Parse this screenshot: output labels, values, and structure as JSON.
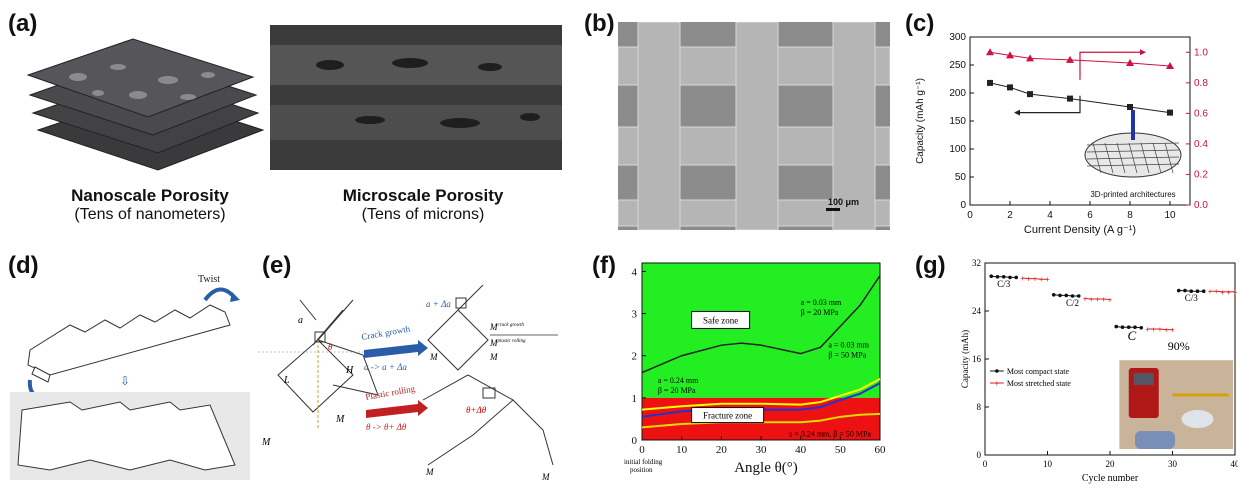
{
  "labels": {
    "a": "(a)",
    "b": "(b)",
    "c": "(c)",
    "d": "(d)",
    "e": "(e)",
    "f": "(f)",
    "g": "(g)"
  },
  "panel_a": {
    "nano_title": "Nanoscale Porosity",
    "nano_sub": "(Tens of nanometers)",
    "micro_title": "Microscale Porosity",
    "micro_sub": "(Tens of microns)"
  },
  "panel_b": {
    "scale": "100 μm"
  },
  "panel_c": {
    "inset": "3D-printed architectures",
    "colors": {
      "left": "#222222",
      "right": "#d01040"
    }
  },
  "panel_d": {
    "twist": "Twist"
  },
  "panel_e": {
    "crack": "Crack growth",
    "crack_eq": "a -> a + Δa",
    "plastic": "Plastic rolling",
    "plastic_eq": "θ -> θ+ Δθ",
    "frac_num": "M",
    "frac_num_sup": "crack growth",
    "frac_den": "M",
    "frac_den_sup": "plastic rolling",
    "a": "a",
    "L": "L",
    "H": "H",
    "M": "M",
    "theta": "θ",
    "a_plus": "a + Δa",
    "theta_plus": "θ+Δθ"
  },
  "panel_f": {
    "safe": "Safe zone",
    "fracture": "Fracture zone",
    "ann1_a": "a = 0.03 mm",
    "ann1_b": "β = 20 MPa",
    "ann2_a": "a = 0.03 mm",
    "ann2_b": "β = 50 MPa",
    "ann3_a": "a = 0.24 mm",
    "ann3_b": "β = 20 MPa",
    "ann4": "a = 0.24 mm, β = 50 MPa",
    "initial1": "initial folding",
    "initial2": "position",
    "colors": {
      "safe": "#22ee22",
      "fracture": "#ee1111"
    }
  },
  "panel_g": {
    "labels_c": [
      "C/3",
      "C/2",
      "C",
      "C/3"
    ],
    "pct": "90%",
    "colors": {
      "compact": "#111111",
      "stretched": "#e02020"
    }
  },
  "chart_data": [
    {
      "type": "line",
      "panel": "c",
      "xlabel": "Current Density (A g⁻¹)",
      "ylabel": "Capacity (mAh g⁻¹)",
      "xlim": [
        0,
        11
      ],
      "ylim": [
        0,
        300
      ],
      "y2lim": [
        0,
        1.1
      ],
      "xticks": [
        "0",
        "2",
        "4",
        "6",
        "8",
        "10"
      ],
      "yticks": [
        "0",
        "50",
        "100",
        "150",
        "200",
        "250",
        "300"
      ],
      "y2ticks": [
        "0.0",
        "0.2",
        "0.4",
        "0.6",
        "0.8",
        "1.0"
      ],
      "series": [
        {
          "axis": "left",
          "x": [
            1,
            2,
            3,
            5,
            8,
            10
          ],
          "values": [
            218,
            210,
            198,
            190,
            175,
            165
          ]
        },
        {
          "axis": "right",
          "x": [
            1,
            2,
            3,
            5,
            8,
            10
          ],
          "values": [
            1.0,
            0.98,
            0.96,
            0.95,
            0.93,
            0.91
          ]
        }
      ]
    },
    {
      "type": "line",
      "panel": "f",
      "xlabel": "Angle θ(°)",
      "ylabel": "",
      "xlim": [
        0,
        60
      ],
      "ylim": [
        0,
        4.2
      ],
      "xticks": [
        "0",
        "10",
        "20",
        "30",
        "40",
        "50",
        "60"
      ],
      "yticks": [
        "0",
        "1",
        "2",
        "3",
        "4"
      ],
      "series": [
        {
          "x": [
            0,
            10,
            20,
            25,
            30,
            40,
            45,
            50,
            55,
            60
          ],
          "values": [
            1.6,
            2.0,
            2.25,
            2.3,
            2.25,
            2.05,
            2.2,
            2.7,
            3.2,
            3.9
          ]
        },
        {
          "x": [
            0,
            10,
            20,
            30,
            40,
            45,
            50,
            55,
            60
          ],
          "values": [
            0.72,
            0.8,
            0.86,
            0.86,
            0.84,
            0.9,
            1.05,
            1.2,
            1.45
          ]
        },
        {
          "x": [
            0,
            10,
            20,
            30,
            40,
            45,
            50,
            55,
            60
          ],
          "values": [
            0.55,
            0.68,
            0.74,
            0.72,
            0.72,
            0.78,
            0.95,
            1.1,
            1.35
          ]
        },
        {
          "x": [
            0,
            10,
            20,
            30,
            40,
            45,
            50,
            55,
            60
          ],
          "values": [
            0.3,
            0.38,
            0.42,
            0.42,
            0.42,
            0.46,
            0.55,
            0.6,
            0.62
          ]
        }
      ]
    },
    {
      "type": "scatter",
      "panel": "g",
      "xlabel": "Cycle number",
      "ylabel": "Capacity (mAh)",
      "xlim": [
        0,
        40
      ],
      "ylim": [
        0,
        32
      ],
      "xticks": [
        "0",
        "10",
        "20",
        "30",
        "40"
      ],
      "yticks": [
        "0",
        "8",
        "16",
        "24",
        "32"
      ],
      "legend": [
        "Most compact state",
        "Most stretched state"
      ],
      "series": [
        {
          "name": "Most compact state",
          "x": [
            1,
            2,
            3,
            4,
            5,
            11,
            12,
            13,
            14,
            15,
            21,
            22,
            23,
            24,
            25,
            31,
            32,
            33,
            34,
            35
          ],
          "values": [
            29.8,
            29.7,
            29.7,
            29.6,
            29.6,
            26.7,
            26.6,
            26.6,
            26.5,
            26.5,
            21.4,
            21.3,
            21.3,
            21.3,
            21.2,
            27.4,
            27.4,
            27.3,
            27.3,
            27.3
          ]
        },
        {
          "name": "Most stretched state",
          "x": [
            6,
            7,
            8,
            9,
            10,
            16,
            17,
            18,
            19,
            20,
            26,
            27,
            28,
            29,
            30,
            36,
            37,
            38,
            39,
            40
          ],
          "values": [
            29.5,
            29.4,
            29.4,
            29.3,
            29.3,
            26.1,
            26.0,
            26.0,
            26.0,
            25.9,
            21.0,
            21.0,
            21.0,
            20.9,
            20.9,
            27.3,
            27.3,
            27.2,
            27.2,
            27.2
          ]
        }
      ]
    }
  ]
}
